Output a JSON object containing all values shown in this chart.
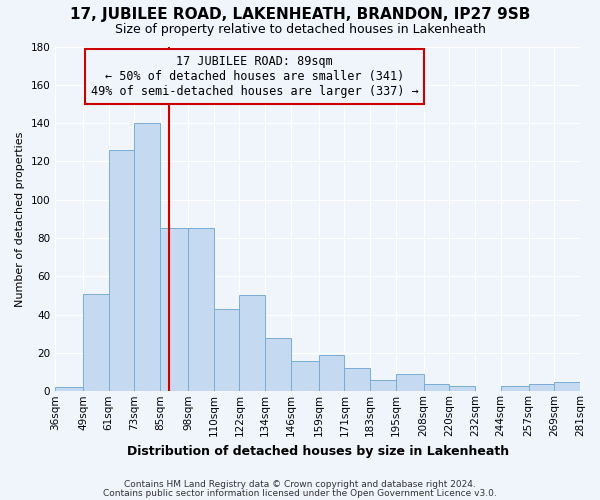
{
  "title": "17, JUBILEE ROAD, LAKENHEATH, BRANDON, IP27 9SB",
  "subtitle": "Size of property relative to detached houses in Lakenheath",
  "xlabel": "Distribution of detached houses by size in Lakenheath",
  "ylabel": "Number of detached properties",
  "footer_line1": "Contains HM Land Registry data © Crown copyright and database right 2024.",
  "footer_line2": "Contains public sector information licensed under the Open Government Licence v3.0.",
  "annotation_line1": "17 JUBILEE ROAD: 89sqm",
  "annotation_line2": "← 50% of detached houses are smaller (341)",
  "annotation_line3": "49% of semi-detached houses are larger (337) →",
  "bar_labels": [
    "36sqm",
    "49sqm",
    "61sqm",
    "73sqm",
    "85sqm",
    "98sqm",
    "110sqm",
    "122sqm",
    "134sqm",
    "146sqm",
    "159sqm",
    "171sqm",
    "183sqm",
    "195sqm",
    "208sqm",
    "220sqm",
    "232sqm",
    "244sqm",
    "257sqm",
    "269sqm",
    "281sqm"
  ],
  "bar_values": [
    2,
    51,
    126,
    140,
    85,
    85,
    43,
    50,
    28,
    16,
    19,
    12,
    6,
    9,
    4,
    3,
    0,
    3,
    4,
    5
  ],
  "bar_color": "#c5d9f0",
  "bar_edge_color": "#7aadd4",
  "marker_x_label": "85sqm",
  "ylim": [
    0,
    180
  ],
  "yticks": [
    0,
    20,
    40,
    60,
    80,
    100,
    120,
    140,
    160,
    180
  ],
  "bg_color": "#f0f4fb",
  "grid_color": "#ffffff",
  "annotation_box_edge_color": "#cc0000",
  "marker_line_color": "#cc0000",
  "title_fontsize": 11,
  "subtitle_fontsize": 9,
  "ylabel_fontsize": 8,
  "xlabel_fontsize": 9,
  "tick_fontsize": 7.5,
  "footer_fontsize": 6.5,
  "annotation_fontsize": 8.5
}
